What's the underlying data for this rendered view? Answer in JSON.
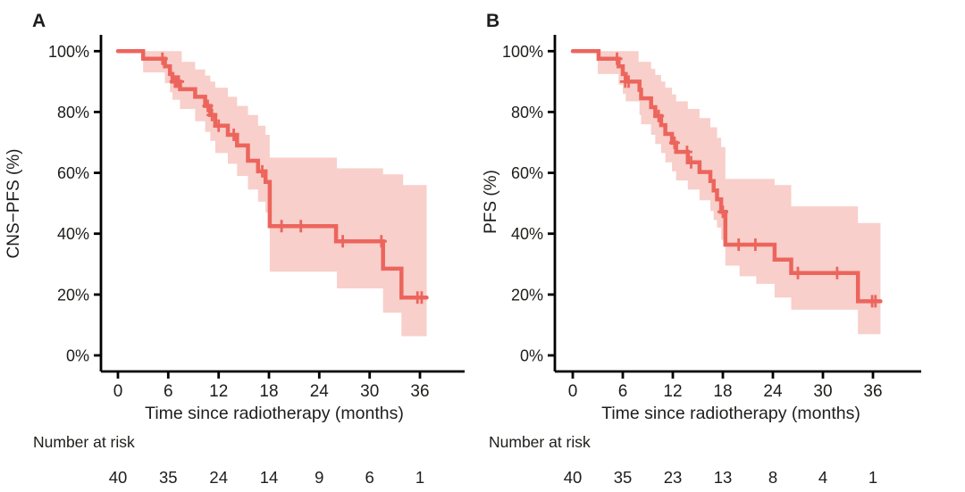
{
  "figure": {
    "background": "#ffffff",
    "colors": {
      "curve": "#ec655d",
      "band": "#f8cfca",
      "axis": "#000000",
      "text": "#1d1d1b"
    }
  },
  "chart_data": [
    {
      "type": "line",
      "subtype": "kaplan-meier-step",
      "panel_label": "A",
      "xlabel": "Time since radiotherapy (months)",
      "ylabel": "CNS−PFS (%)",
      "x_ticks": [
        0,
        6,
        12,
        18,
        24,
        30,
        36
      ],
      "y_tick_labels": [
        "0%",
        "20%",
        "40%",
        "60%",
        "80%",
        "100%"
      ],
      "y_tick_values": [
        0,
        20,
        40,
        60,
        80,
        100
      ],
      "xlim": [
        0,
        38
      ],
      "ylim": [
        0,
        100
      ],
      "grid": false,
      "series": [
        {
          "name": "CNS-PFS",
          "steps": [
            [
              0,
              100
            ],
            [
              3.0,
              97.5
            ],
            [
              5.6,
              95
            ],
            [
              6.2,
              92.5
            ],
            [
              6.5,
              90
            ],
            [
              7.4,
              87.5
            ],
            [
              9.2,
              85
            ],
            [
              10.4,
              82
            ],
            [
              11.0,
              79
            ],
            [
              11.6,
              75.5
            ],
            [
              13.1,
              72.5
            ],
            [
              14.2,
              69
            ],
            [
              15.5,
              64
            ],
            [
              16.7,
              60.5
            ],
            [
              17.6,
              57
            ],
            [
              18.1,
              42.5
            ],
            [
              26.0,
              37.5
            ],
            [
              31.6,
              28.5
            ],
            [
              33.8,
              19
            ]
          ],
          "end_time": 36.8,
          "censor_marks": [
            [
              5.3,
              97.5
            ],
            [
              6.8,
              90
            ],
            [
              7.0,
              90
            ],
            [
              7.25,
              90
            ],
            [
              10.7,
              82
            ],
            [
              11.2,
              79
            ],
            [
              12.0,
              75.5
            ],
            [
              13.8,
              72.5
            ],
            [
              17.2,
              60.5
            ],
            [
              19.5,
              42.5
            ],
            [
              21.8,
              42.5
            ],
            [
              26.8,
              37.5
            ],
            [
              31.4,
              37.5
            ],
            [
              35.7,
              19
            ],
            [
              36.2,
              19
            ]
          ]
        }
      ],
      "ci_band": {
        "start": 3,
        "end": 36.8,
        "upper": [
          [
            3,
            100
          ],
          [
            7.6,
            96.5
          ],
          [
            9.2,
            94
          ],
          [
            10.4,
            92
          ],
          [
            11.0,
            90
          ],
          [
            11.6,
            88
          ],
          [
            13.1,
            85
          ],
          [
            14.2,
            82
          ],
          [
            15.5,
            79
          ],
          [
            16.7,
            75.5
          ],
          [
            17.6,
            72.5
          ],
          [
            18.1,
            65
          ],
          [
            26.1,
            61.5
          ],
          [
            31.6,
            59.5
          ],
          [
            34.0,
            56
          ]
        ],
        "lower": [
          [
            3,
            93
          ],
          [
            5.6,
            89.5
          ],
          [
            6.2,
            86.5
          ],
          [
            6.5,
            84
          ],
          [
            7.4,
            81
          ],
          [
            9.2,
            77
          ],
          [
            10.4,
            73.5
          ],
          [
            11.0,
            70.5
          ],
          [
            11.6,
            66.5
          ],
          [
            13.1,
            63
          ],
          [
            14.2,
            59
          ],
          [
            15.5,
            54.5
          ],
          [
            16.7,
            50.5
          ],
          [
            17.6,
            47
          ],
          [
            18.1,
            27.5
          ],
          [
            26.1,
            22
          ],
          [
            31.6,
            14
          ],
          [
            33.8,
            6.3
          ]
        ]
      },
      "risk_table": {
        "label": "Number at risk",
        "times": [
          0,
          6,
          12,
          18,
          24,
          30,
          36
        ],
        "counts": [
          40,
          35,
          24,
          14,
          9,
          6,
          1
        ]
      }
    },
    {
      "type": "line",
      "subtype": "kaplan-meier-step",
      "panel_label": "B",
      "xlabel": "Time since radiotherapy (months)",
      "ylabel": "PFS (%)",
      "x_ticks": [
        0,
        6,
        12,
        18,
        24,
        30,
        36
      ],
      "y_tick_labels": [
        "0%",
        "20%",
        "40%",
        "60%",
        "80%",
        "100%"
      ],
      "y_tick_values": [
        0,
        20,
        40,
        60,
        80,
        100
      ],
      "xlim": [
        0,
        38
      ],
      "ylim": [
        0,
        100
      ],
      "grid": false,
      "series": [
        {
          "name": "PFS",
          "steps": [
            [
              0,
              100
            ],
            [
              3.1,
              97.5
            ],
            [
              5.5,
              95
            ],
            [
              6.0,
              92.5
            ],
            [
              6.35,
              90
            ],
            [
              8.0,
              87.3
            ],
            [
              8.2,
              84.5
            ],
            [
              9.4,
              81.6
            ],
            [
              9.9,
              78.7
            ],
            [
              10.6,
              75.7
            ],
            [
              11.1,
              72.8
            ],
            [
              11.9,
              69.9
            ],
            [
              12.4,
              66.9
            ],
            [
              13.8,
              63.5
            ],
            [
              15.2,
              60.3
            ],
            [
              16.5,
              57.3
            ],
            [
              16.9,
              54.2
            ],
            [
              17.3,
              51.3
            ],
            [
              17.8,
              47.2
            ],
            [
              18.3,
              36.4
            ],
            [
              24.2,
              31.5
            ],
            [
              26.2,
              27.1
            ],
            [
              34.2,
              17.8
            ]
          ],
          "end_time": 36.9,
          "censor_marks": [
            [
              5.3,
              97.5
            ],
            [
              6.3,
              90
            ],
            [
              6.7,
              90
            ],
            [
              10.3,
              78.7
            ],
            [
              12.2,
              69.9
            ],
            [
              13.7,
              66.9
            ],
            [
              14.2,
              63.5
            ],
            [
              18.0,
              47.2
            ],
            [
              19.9,
              36.4
            ],
            [
              21.9,
              36.4
            ],
            [
              27.0,
              27.1
            ],
            [
              31.7,
              27.1
            ],
            [
              35.9,
              17.8
            ],
            [
              36.3,
              17.8
            ]
          ]
        }
      ],
      "ci_band": {
        "start": 3,
        "end": 36.9,
        "upper": [
          [
            3,
            100
          ],
          [
            7.9,
            96.5
          ],
          [
            9.4,
            94.2
          ],
          [
            9.9,
            92.2
          ],
          [
            10.6,
            90
          ],
          [
            11.1,
            88
          ],
          [
            11.9,
            85.8
          ],
          [
            12.4,
            83.5
          ],
          [
            13.8,
            81
          ],
          [
            15.2,
            78
          ],
          [
            16.5,
            75
          ],
          [
            17.3,
            71.5
          ],
          [
            17.8,
            68.5
          ],
          [
            18.3,
            58
          ],
          [
            24.2,
            56
          ],
          [
            26.2,
            49
          ],
          [
            34.2,
            43.5
          ]
        ],
        "lower": [
          [
            3,
            92.5
          ],
          [
            5.5,
            89
          ],
          [
            6.0,
            86
          ],
          [
            6.35,
            83.5
          ],
          [
            8.0,
            79
          ],
          [
            8.2,
            76
          ],
          [
            9.4,
            72.5
          ],
          [
            9.9,
            69.5
          ],
          [
            10.6,
            66.5
          ],
          [
            11.1,
            63.5
          ],
          [
            11.9,
            60.5
          ],
          [
            12.4,
            57.5
          ],
          [
            13.8,
            54.5
          ],
          [
            15.2,
            51
          ],
          [
            16.5,
            47.5
          ],
          [
            16.9,
            44.5
          ],
          [
            17.3,
            42
          ],
          [
            17.8,
            38
          ],
          [
            18.3,
            29.5
          ],
          [
            20.0,
            26
          ],
          [
            22.0,
            23.5
          ],
          [
            24.2,
            19
          ],
          [
            26.2,
            15
          ],
          [
            34.2,
            7
          ]
        ]
      },
      "risk_table": {
        "label": "Number at risk",
        "times": [
          0,
          6,
          12,
          18,
          24,
          30,
          36
        ],
        "counts": [
          40,
          35,
          23,
          13,
          8,
          4,
          1
        ]
      }
    }
  ]
}
